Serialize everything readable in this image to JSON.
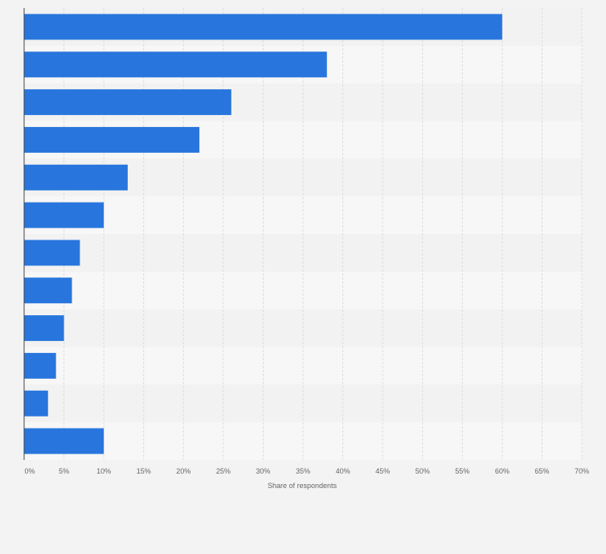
{
  "chart_data": {
    "type": "bar",
    "orientation": "horizontal",
    "categories": [
      "",
      "",
      "",
      "",
      "",
      "",
      "",
      "",
      "",
      "",
      "",
      ""
    ],
    "values": [
      60,
      38,
      26,
      22,
      13,
      10,
      7,
      6,
      5,
      4,
      3,
      10
    ],
    "value_unit": "%",
    "title": "",
    "xlabel": "Share of respondents",
    "ylabel": "",
    "xlim": [
      0,
      70
    ],
    "x_ticks": [
      0,
      5,
      10,
      15,
      20,
      25,
      30,
      35,
      40,
      45,
      50,
      55,
      60,
      65,
      70
    ],
    "x_tick_labels": [
      "0%",
      "5%",
      "10%",
      "15%",
      "20%",
      "25%",
      "30%",
      "35%",
      "40%",
      "45%",
      "50%",
      "55%",
      "60%",
      "65%",
      "70%"
    ],
    "grid": true,
    "legend": "none",
    "colors": {
      "bar": "#2876dd",
      "band_dark": "#f2f2f2",
      "band_light": "#f7f7f7",
      "grid": "#dcdcdc",
      "axis": "#444444",
      "text": "#666666",
      "background": "#f3f3f3"
    }
  }
}
